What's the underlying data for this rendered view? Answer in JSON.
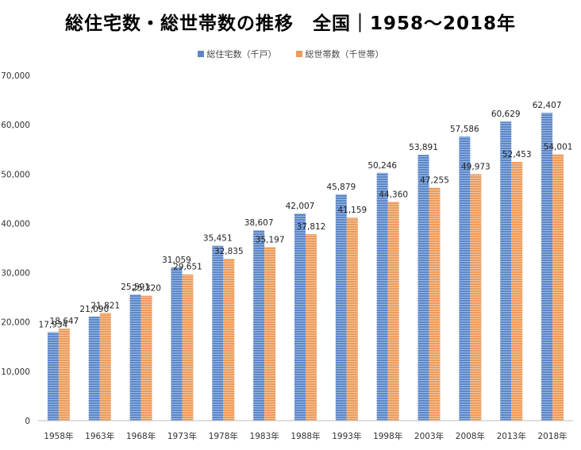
{
  "title": "総住宅数・総世帯数の推移　全国｜1958～2018年",
  "colors": {
    "series1": "#5b87c8",
    "series2": "#ec9c5e",
    "grid": "#d9d9d9",
    "axis": "#bfbfbf"
  },
  "chart_data": {
    "type": "bar",
    "title": "総住宅数・総世帯数の推移　全国｜1958～2018年",
    "xlabel": "",
    "ylabel": "",
    "ylim": [
      0,
      70000
    ],
    "yticks": [
      0,
      10000,
      20000,
      30000,
      40000,
      50000,
      60000,
      70000
    ],
    "ytick_labels": [
      "0",
      "10,000",
      "20,000",
      "30,000",
      "40,000",
      "50,000",
      "60,000",
      "70,000"
    ],
    "grid": false,
    "legend": "top-center",
    "categories": [
      "1958年",
      "1963年",
      "1968年",
      "1973年",
      "1978年",
      "1983年",
      "1988年",
      "1993年",
      "1998年",
      "2003年",
      "2008年",
      "2013年",
      "2018年"
    ],
    "series": [
      {
        "name": "総住宅数（千戸）",
        "values": [
          17934,
          21090,
          25591,
          31059,
          35451,
          38607,
          42007,
          45879,
          50246,
          53891,
          57586,
          60629,
          62407
        ],
        "labels": [
          "17,934",
          "21,090",
          "25,591",
          "31,059",
          "35,451",
          "38,607",
          "42,007",
          "45,879",
          "50,246",
          "53,891",
          "57,586",
          "60,629",
          "62,407"
        ]
      },
      {
        "name": "総世帯数（千世帯）",
        "values": [
          18647,
          21821,
          25320,
          29651,
          32835,
          35197,
          37812,
          41159,
          44360,
          47255,
          49973,
          52453,
          54001
        ],
        "labels": [
          "18,647",
          "21,821",
          "25,320",
          "29,651",
          "32,835",
          "35,197",
          "37,812",
          "41,159",
          "44,360",
          "47,255",
          "49,973",
          "52,453",
          "54,001"
        ]
      }
    ]
  }
}
